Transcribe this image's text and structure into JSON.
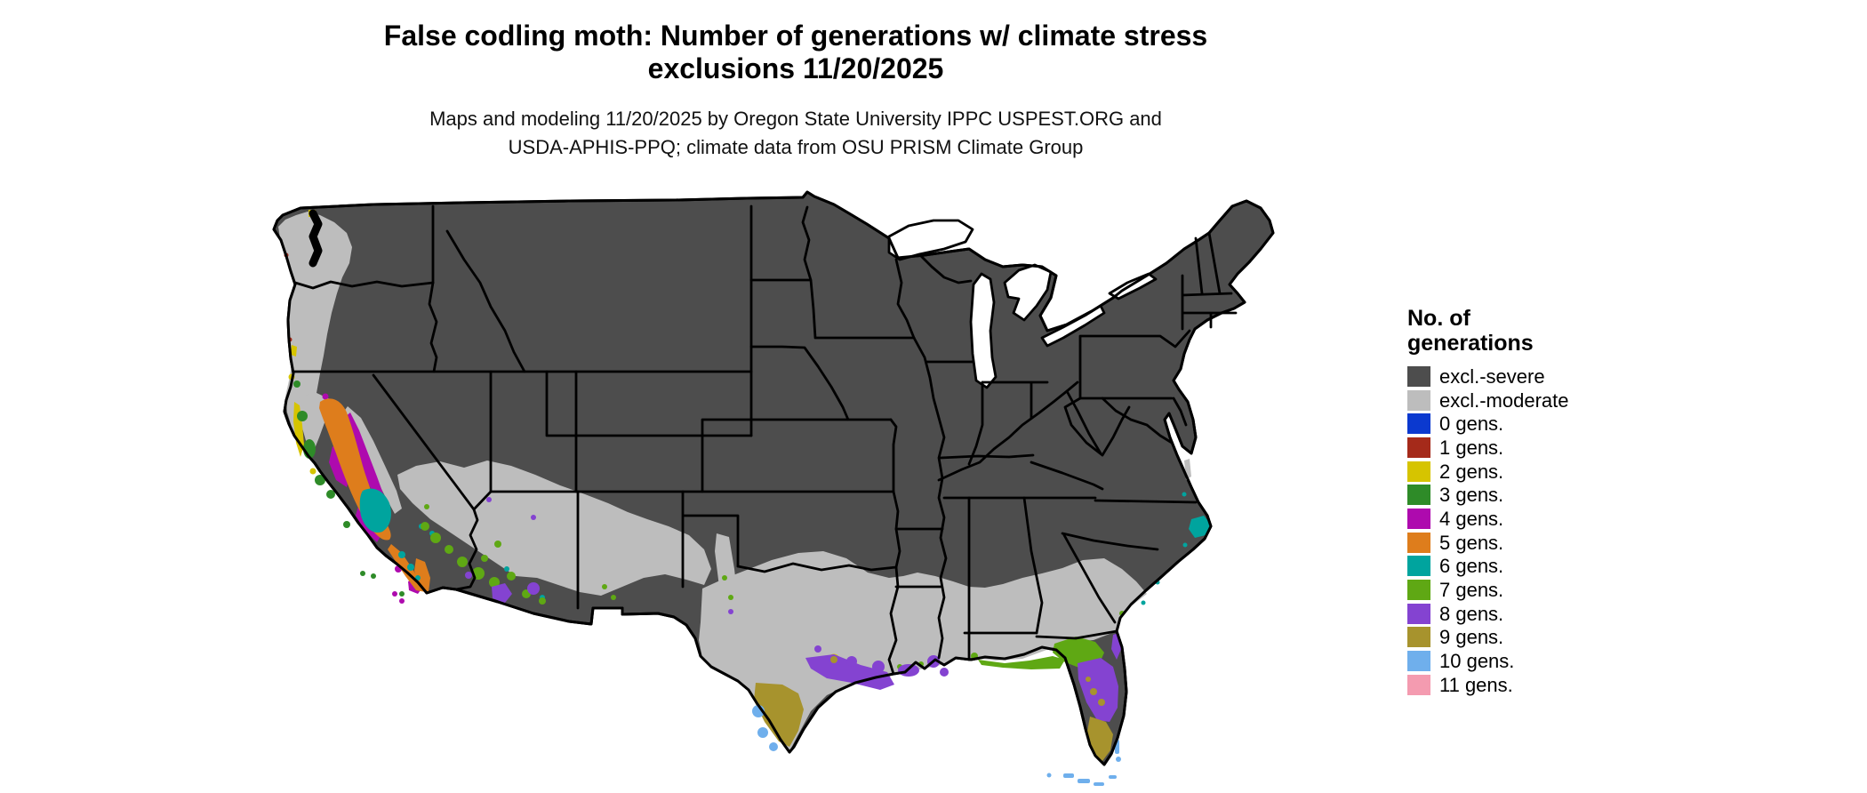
{
  "header": {
    "title_line1": "False codling moth: Number of generations w/ climate stress",
    "title_line2": "exclusions 11/20/2025",
    "subtitle_line1": "Maps and modeling 11/20/2025 by Oregon State University IPPC USPEST.ORG and",
    "subtitle_line2": "USDA-APHIS-PPQ; climate data from OSU PRISM Climate Group"
  },
  "legend": {
    "title_line1": "No. of",
    "title_line2": "generations",
    "items": [
      {
        "label": "excl.-severe",
        "color": "#4D4D4D"
      },
      {
        "label": "excl.-moderate",
        "color": "#BDBDBD"
      },
      {
        "label": "0 gens.",
        "color": "#0B39CF"
      },
      {
        "label": "1 gens.",
        "color": "#A52A1A"
      },
      {
        "label": "2 gens.",
        "color": "#D6C400"
      },
      {
        "label": "3 gens.",
        "color": "#2E8B28"
      },
      {
        "label": "4 gens.",
        "color": "#AE0AAE"
      },
      {
        "label": "5 gens.",
        "color": "#DE7D1C"
      },
      {
        "label": "6 gens.",
        "color": "#00A49E"
      },
      {
        "label": "7 gens.",
        "color": "#5FA814"
      },
      {
        "label": "8 gens.",
        "color": "#8443D1"
      },
      {
        "label": "9 gens.",
        "color": "#A7932D"
      },
      {
        "label": "10 gens.",
        "color": "#6FAFEC"
      },
      {
        "label": "11 gens.",
        "color": "#F49BB0"
      }
    ]
  },
  "map": {
    "background_color": "#FFFFFF",
    "border_color": "#000000",
    "water_color": "#FFFFFF",
    "regions": [
      {
        "area": "Most of interior and northern US",
        "class": "excl.-severe"
      },
      {
        "area": "Pacific Northwest lowlands and coast",
        "class": "excl.-moderate"
      },
      {
        "area": "Southern plains, Gulf coastal plain, Southeast coastal plain",
        "class": "excl.-moderate"
      },
      {
        "area": "California Central Valley and southern coast",
        "class": "5 gens."
      },
      {
        "area": "California valley flanks",
        "class": "4 gens."
      },
      {
        "area": "Tulare basin California",
        "class": "6 gens."
      },
      {
        "area": "Southern Arizona deserts",
        "class": "7 gens. / 8 gens."
      },
      {
        "area": "Texas Gulf coast and Louisiana coast",
        "class": "8 gens."
      },
      {
        "area": "South Texas",
        "class": "9 gens. / 10 gens."
      },
      {
        "area": "North Florida",
        "class": "7 gens."
      },
      {
        "area": "Central Florida",
        "class": "8 gens."
      },
      {
        "area": "South Florida",
        "class": "9 gens."
      },
      {
        "area": "Florida Keys and Rio Grande Valley tip",
        "class": "10 gens."
      },
      {
        "area": "North Carolina Outer Banks",
        "class": "6 gens."
      }
    ]
  }
}
